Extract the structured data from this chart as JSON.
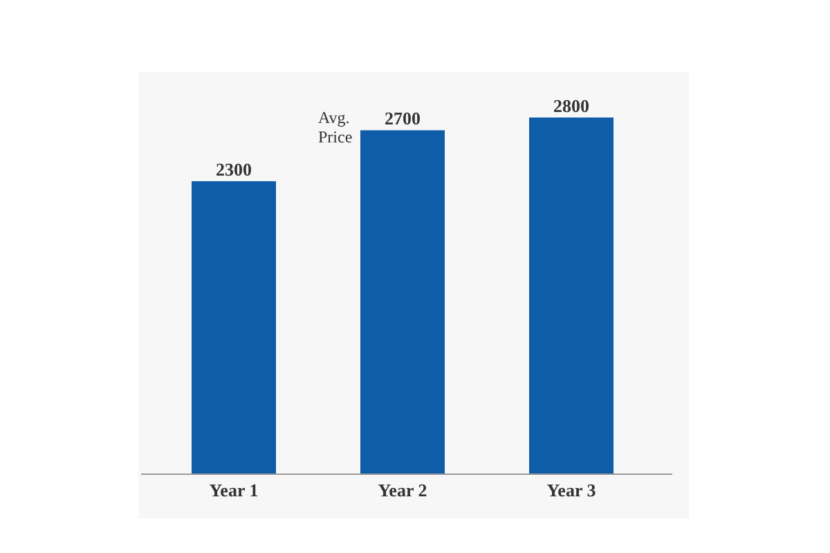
{
  "chart_data": {
    "type": "bar",
    "ylabel": "Avg. Price",
    "categories": [
      "Year 1",
      "Year 2",
      "Year 3"
    ],
    "values": [
      2300,
      2700,
      2800
    ],
    "color": "#0f5ca8",
    "data_labels": true
  }
}
